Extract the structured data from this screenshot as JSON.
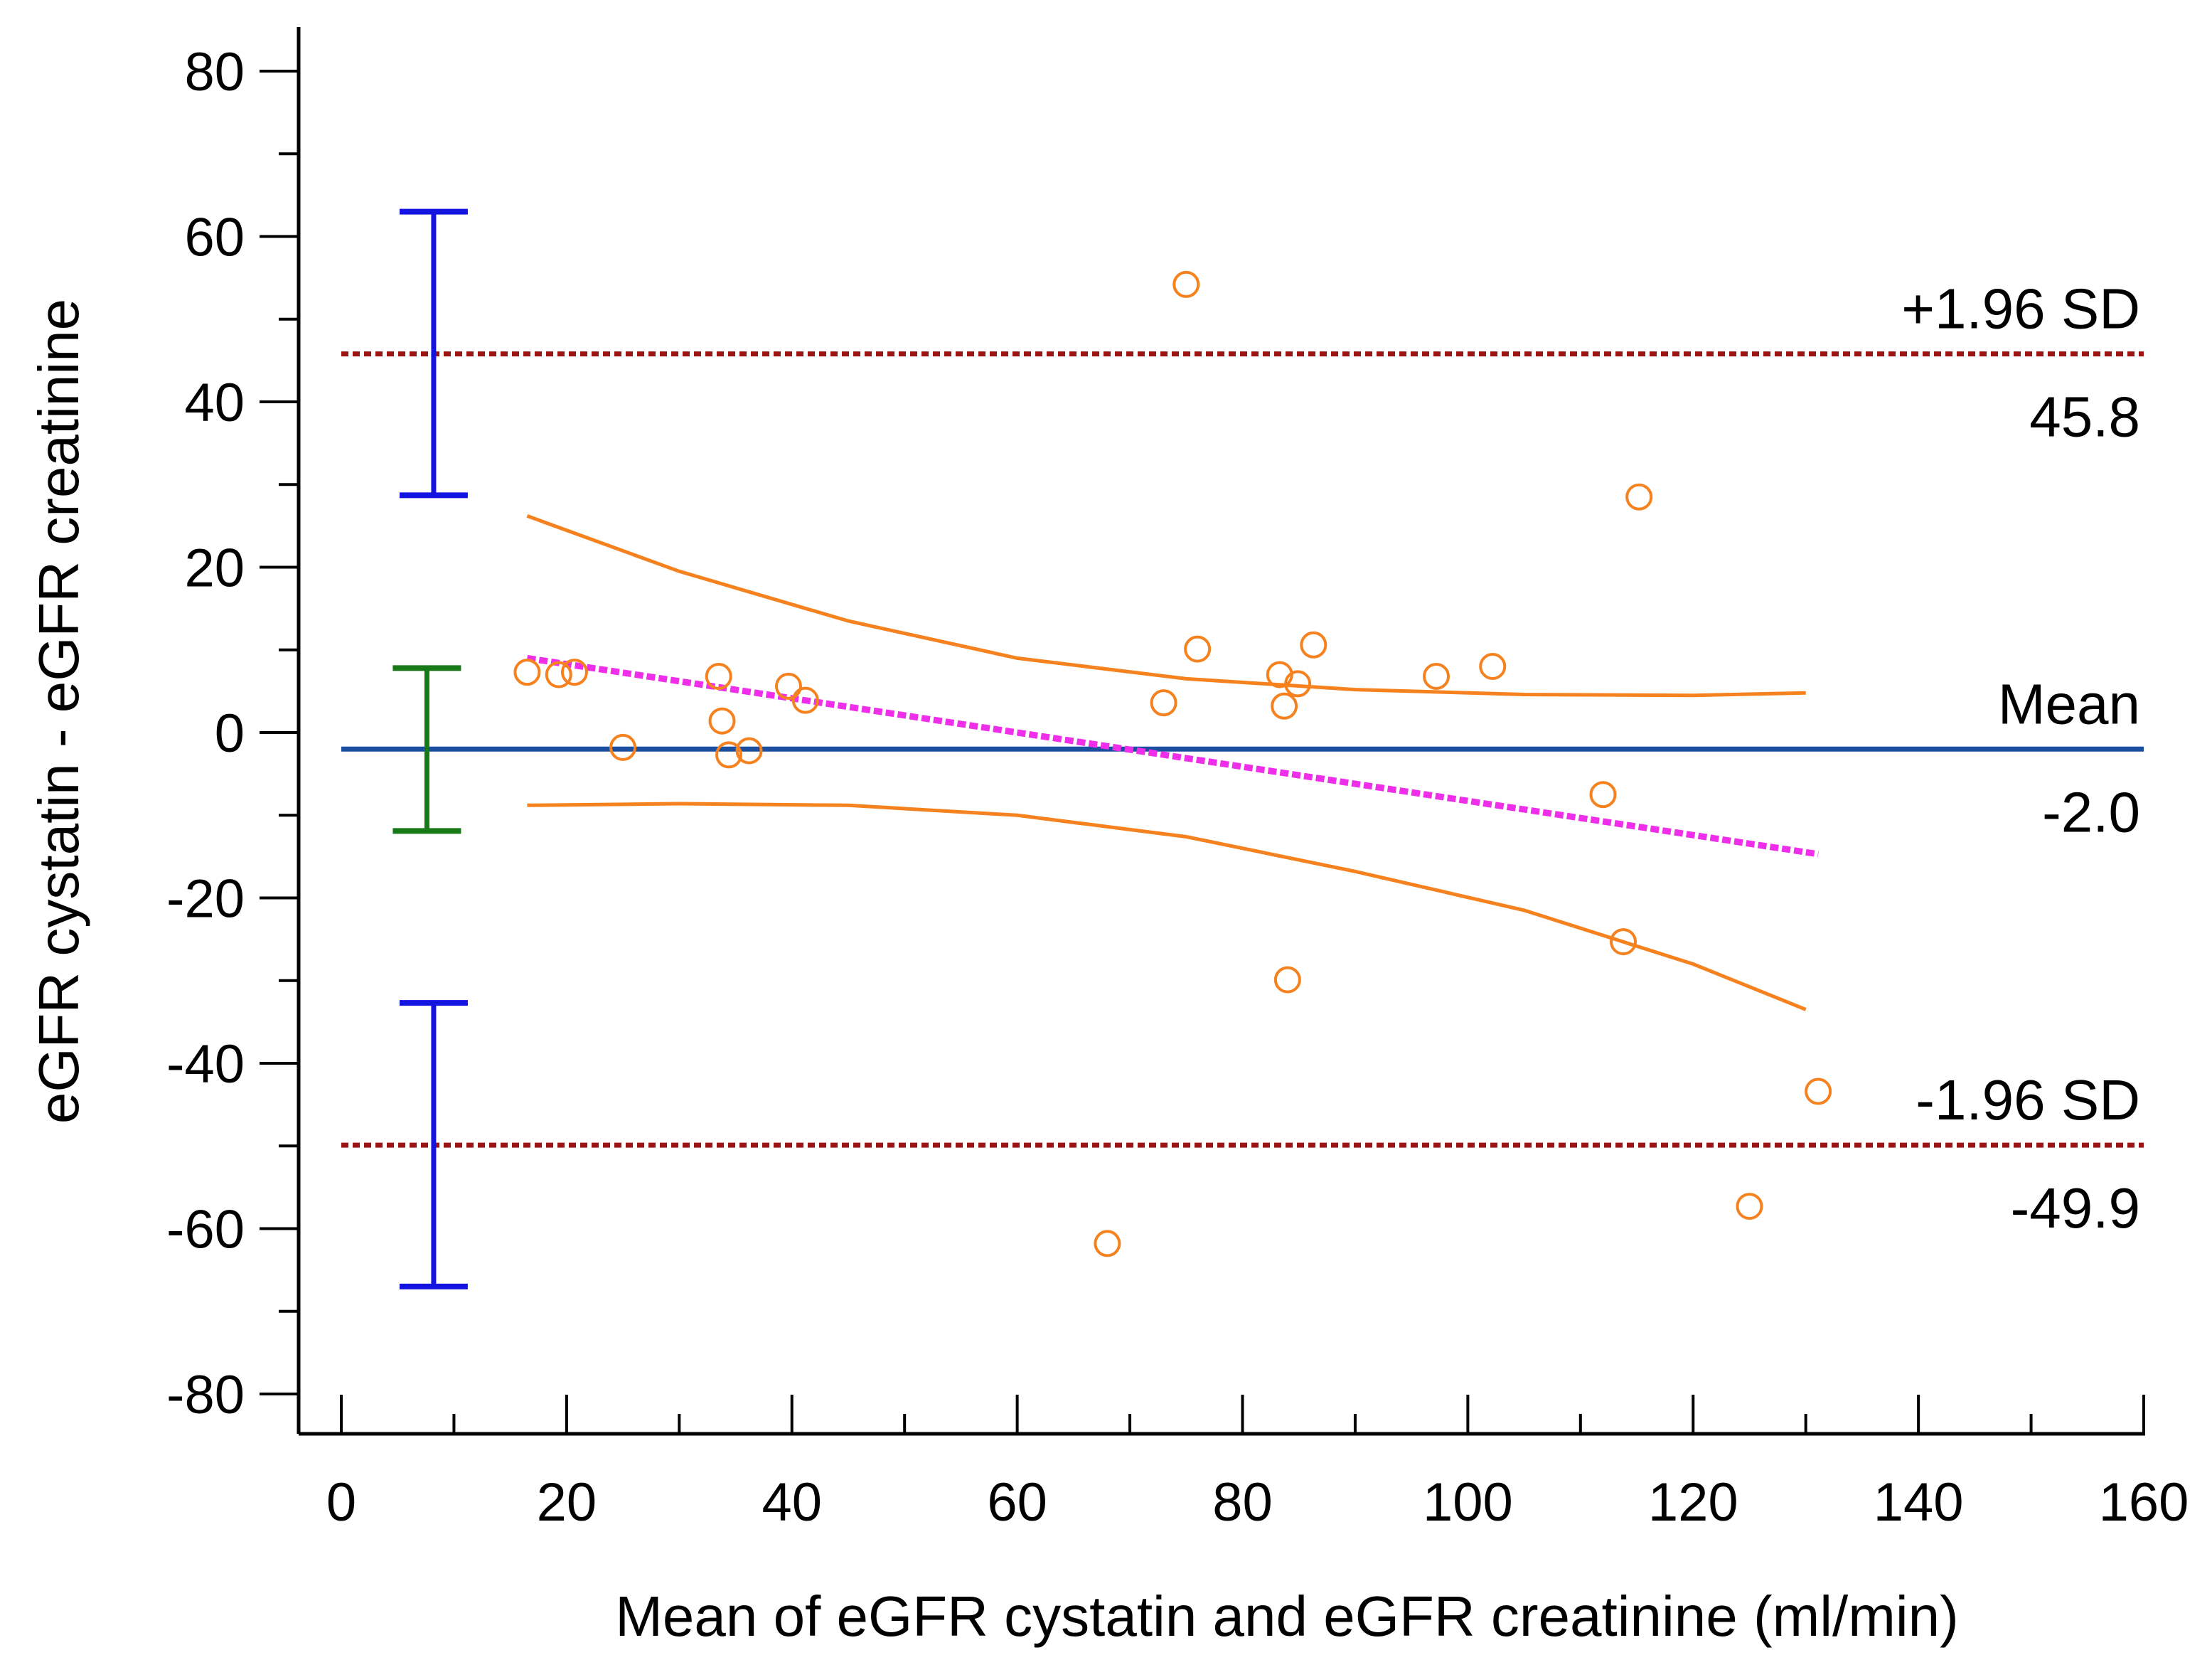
{
  "chart_data": {
    "type": "scatter",
    "title": "",
    "xlabel": "Mean of eGFR cystatin and eGFR creatinine (ml/min)",
    "ylabel": "eGFR cystatin - eGFR creatinine",
    "xlim": [
      0,
      160
    ],
    "ylim": [
      -80,
      80
    ],
    "x_ticks": [
      0,
      20,
      40,
      60,
      80,
      100,
      120,
      140,
      160
    ],
    "y_ticks": [
      80,
      60,
      40,
      20,
      0,
      -20,
      -40,
      -60,
      -80
    ],
    "x_minor_step": 10,
    "y_minor_step": 10,
    "grid": false,
    "points": [
      {
        "x": 16.5,
        "y": 7.3
      },
      {
        "x": 19.3,
        "y": 7.0
      },
      {
        "x": 20.7,
        "y": 7.3
      },
      {
        "x": 25.0,
        "y": -1.8
      },
      {
        "x": 33.5,
        "y": 6.8
      },
      {
        "x": 33.8,
        "y": 1.4
      },
      {
        "x": 34.4,
        "y": -2.7
      },
      {
        "x": 36.2,
        "y": -2.2
      },
      {
        "x": 39.7,
        "y": 5.6
      },
      {
        "x": 41.2,
        "y": 3.9
      },
      {
        "x": 68.0,
        "y": -61.8
      },
      {
        "x": 73.0,
        "y": 3.6
      },
      {
        "x": 75.0,
        "y": 54.2
      },
      {
        "x": 76.0,
        "y": 10.1
      },
      {
        "x": 83.3,
        "y": 7.0
      },
      {
        "x": 83.7,
        "y": 3.2
      },
      {
        "x": 84.0,
        "y": -29.9
      },
      {
        "x": 84.9,
        "y": 5.9
      },
      {
        "x": 86.3,
        "y": 10.6
      },
      {
        "x": 97.2,
        "y": 6.8
      },
      {
        "x": 102.2,
        "y": 8.0
      },
      {
        "x": 112.0,
        "y": -7.5
      },
      {
        "x": 113.8,
        "y": -25.3
      },
      {
        "x": 115.2,
        "y": 28.5
      },
      {
        "x": 125.0,
        "y": -57.3
      },
      {
        "x": 131.1,
        "y": -43.4
      }
    ],
    "mean": {
      "value": -2.0,
      "label": "Mean",
      "value_label": "-2.0",
      "color": "#1a4fa0"
    },
    "upper_loa": {
      "value": 45.8,
      "label": "+1.96 SD",
      "value_label": "45.8",
      "color": "#9c1414"
    },
    "lower_loa": {
      "value": -49.9,
      "label": "-1.96 SD",
      "value_label": "-49.9",
      "color": "#9c1414"
    },
    "regression_line": {
      "x": [
        16.5,
        131.1
      ],
      "y": [
        9.0,
        -14.7
      ],
      "color": "#ee2ee8"
    },
    "confidence_band": {
      "color": "#f5821f",
      "upper": {
        "x": [
          16.5,
          30,
          45,
          60,
          75,
          90,
          105,
          120,
          130
        ],
        "y": [
          26.2,
          19.5,
          13.5,
          9.0,
          6.5,
          5.2,
          4.6,
          4.5,
          4.8
        ]
      },
      "lower": {
        "x": [
          16.5,
          30,
          45,
          60,
          75,
          90,
          105,
          120,
          130
        ],
        "y": [
          -8.8,
          -8.6,
          -8.8,
          -10.0,
          -12.6,
          -16.8,
          -21.5,
          -28.0,
          -33.5
        ]
      }
    },
    "ci_bars": [
      {
        "name": "upper-loa-ci",
        "x": 8.2,
        "low": 28.7,
        "high": 63.0,
        "color": "#1414e0"
      },
      {
        "name": "mean-ci",
        "x": 7.6,
        "low": -11.9,
        "high": 7.8,
        "color": "#177a17"
      },
      {
        "name": "lower-loa-ci",
        "x": 8.2,
        "low": -67.0,
        "high": -32.7,
        "color": "#1414e0"
      }
    ],
    "marker_color": "#f5821f"
  }
}
